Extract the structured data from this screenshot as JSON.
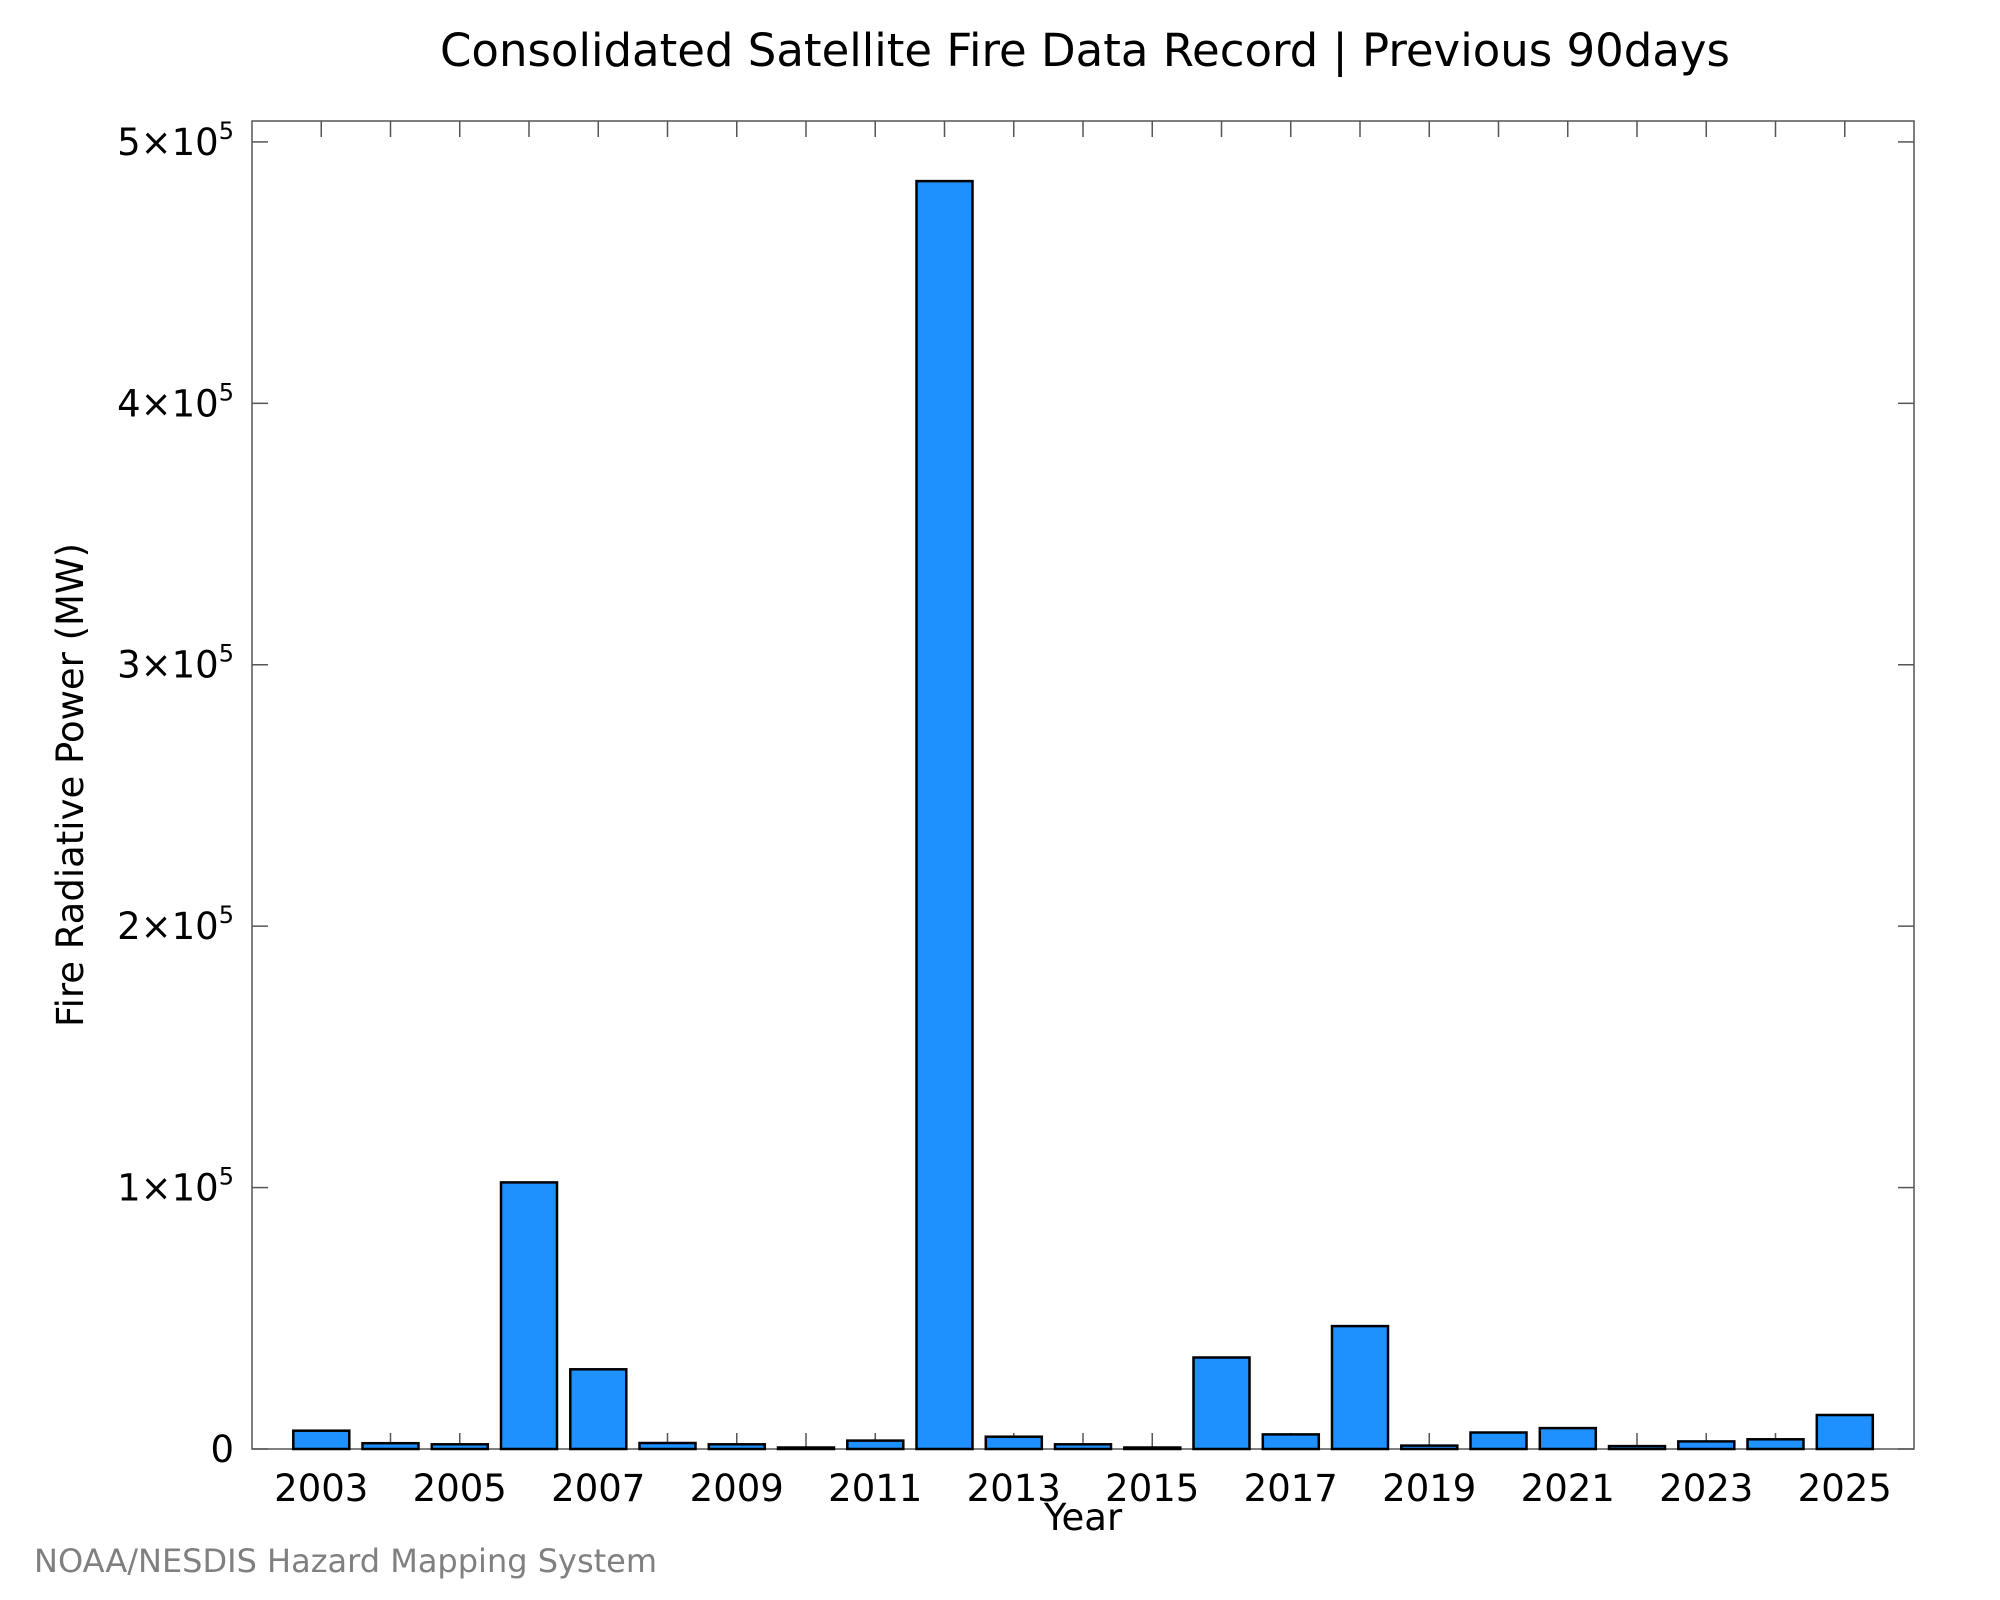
{
  "chart_data": {
    "type": "bar",
    "title": "Consolidated Satellite Fire Data Record | Previous 90days",
    "xlabel": "Year",
    "ylabel": "Fire Radiative Power (MW)",
    "categories": [
      "2003",
      "2004",
      "2005",
      "2006",
      "2007",
      "2008",
      "2009",
      "2010",
      "2011",
      "2012",
      "2013",
      "2014",
      "2015",
      "2016",
      "2017",
      "2018",
      "2019",
      "2020",
      "2021",
      "2022",
      "2023",
      "2024",
      "2025"
    ],
    "values": [
      7000,
      2200,
      1800,
      102000,
      30500,
      2300,
      1800,
      400,
      3200,
      485000,
      4700,
      1800,
      500,
      35000,
      5600,
      47000,
      1300,
      6300,
      8000,
      1100,
      2900,
      3700,
      13000
    ],
    "x_tick_labels": [
      "2003",
      "2005",
      "2007",
      "2009",
      "2011",
      "2013",
      "2015",
      "2017",
      "2019",
      "2021",
      "2023",
      "2025"
    ],
    "y_ticks": [
      {
        "value": 0,
        "mantissa": "0",
        "exponent": ""
      },
      {
        "value": 100000,
        "mantissa": "1×10",
        "exponent": "5"
      },
      {
        "value": 200000,
        "mantissa": "2×10",
        "exponent": "5"
      },
      {
        "value": 300000,
        "mantissa": "3×10",
        "exponent": "5"
      },
      {
        "value": 400000,
        "mantissa": "4×10",
        "exponent": "5"
      },
      {
        "value": 500000,
        "mantissa": "5×10",
        "exponent": "5"
      }
    ],
    "ylim": [
      0,
      508000
    ],
    "xlim": [
      2002,
      2026
    ],
    "bar_color": "#1e90ff",
    "bar_edge_color": "#000000",
    "grid": false,
    "legend": "none"
  },
  "footer": {
    "credit": "NOAA/NESDIS Hazard Mapping System"
  }
}
